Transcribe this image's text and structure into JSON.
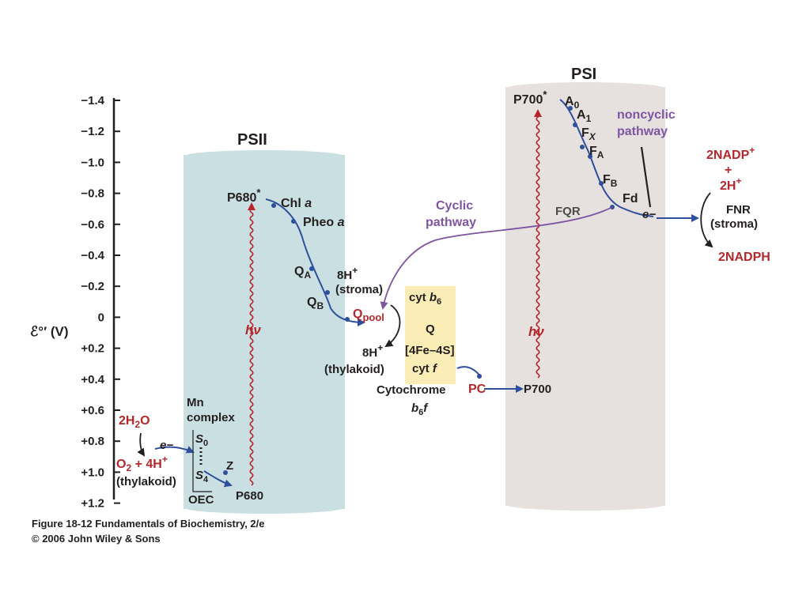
{
  "axis": {
    "label": "ℰ°′ (V)",
    "ticks": [
      "−1.4",
      "−1.2",
      "−1.0",
      "−0.8",
      "−0.6",
      "−0.4",
      "−0.2",
      "0",
      "+0.2",
      "+0.4",
      "+0.6",
      "+0.8",
      "+1.0",
      "+1.2"
    ]
  },
  "psii": {
    "title": "PSII",
    "p680_star": "P680",
    "star": "*",
    "chl": "Chl",
    "chl_sub": "a",
    "pheo": "Pheo",
    "pheo_sub": "a",
    "qa": "Q",
    "qa_sub": "A",
    "qb": "Q",
    "qb_sub": "B",
    "hv": "hν",
    "mn_line1": "Mn",
    "mn_line2": "complex",
    "z": "Z",
    "p680": "P680",
    "s0": "S",
    "s0_sub": "0",
    "s4": "S",
    "s4_sub": "4",
    "oec": "OEC"
  },
  "water": {
    "h2o_a": "2H",
    "h2o_sub": "2",
    "h2o_b": "O",
    "o2_a": "O",
    "o2_sub": "2",
    "o2_b": " + 4H",
    "o2_sup": "+",
    "thylakoid": "(thylakoid)",
    "electron": "e−"
  },
  "qpool": {
    "stroma_h_a": "8H",
    "stroma_h_sup": "+",
    "stroma": "(stroma)",
    "q": "Q",
    "q_sub": "pool",
    "thyl_h_a": "8H",
    "thyl_h_sup": "+",
    "thylakoid": "(thylakoid)"
  },
  "cytochrome": {
    "cytb6_a": "cyt ",
    "cytb6_b": "b",
    "cytb6_sub": "6",
    "q": "Q",
    "fes": "[4Fe–4S]",
    "cytf_a": "cyt ",
    "cytf_b": "f",
    "name": "Cytochrome",
    "name2_a": "b",
    "name2_sub": "6",
    "name2_b": "f"
  },
  "pc": "PC",
  "psi": {
    "title": "PSI",
    "p700_star": "P700",
    "star": "*",
    "a0": "A",
    "a0_sub": "0",
    "a1": "A",
    "a1_sub": "1",
    "fx": "F",
    "fx_sub": "X",
    "fa": "F",
    "fa_sub": "A",
    "fb": "F",
    "fb_sub": "B",
    "fd": "Fd",
    "fqr": "FQR",
    "hv": "hν",
    "p700": "P700",
    "electron": "e−"
  },
  "cyclic": {
    "line1": "Cyclic",
    "line2": "pathway"
  },
  "noncyclic": {
    "line1": "noncyclic",
    "line2": "pathway"
  },
  "fnr": {
    "nadp_a": "2NADP",
    "nadp_sup": "+",
    "plus": "+",
    "h_a": "2H",
    "h_sup": "+",
    "fnr": "FNR",
    "stroma": "(stroma)",
    "nadph": "2NADPH"
  },
  "caption": {
    "line1": "Figure 18-12 Fundamentals of Biochemistry, 2/e",
    "line2": "© 2006 John Wiley & Sons"
  },
  "colors": {
    "psii_panel": "#c9dfe2",
    "psi_panel": "#e6e1de",
    "cyt_box": "#fbedb5",
    "electron_path": "#2e4f9b",
    "light_wave": "#b5272d",
    "cyclic_path": "#7d55a3"
  }
}
